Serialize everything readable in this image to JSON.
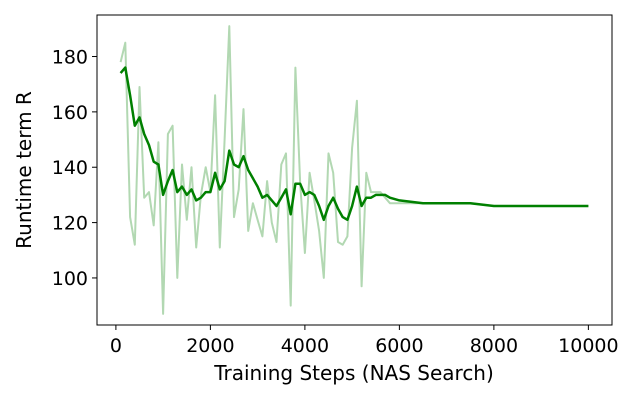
{
  "chart_data": {
    "type": "line",
    "xlabel": "Training Steps (NAS Search)",
    "ylabel": "Runtime term R",
    "xlim": [
      -400,
      10500
    ],
    "ylim": [
      83,
      195
    ],
    "xticks": [
      0,
      2000,
      4000,
      6000,
      8000,
      10000
    ],
    "yticks": [
      100,
      120,
      140,
      160,
      180
    ],
    "grid": false,
    "colors": {
      "raw": "#b2d8b2",
      "smoothed": "#008000"
    },
    "series": [
      {
        "x": [
          100,
          200,
          300,
          400,
          500,
          600,
          700,
          800,
          900,
          1000,
          1100,
          1200,
          1300,
          1400,
          1500,
          1600,
          1700,
          1800,
          1900,
          2000,
          2100,
          2200,
          2300,
          2400,
          2500,
          2600,
          2700,
          2800,
          2900,
          3000,
          3100,
          3200,
          3300,
          3400,
          3500,
          3600,
          3700,
          3800,
          3900,
          4000,
          4100,
          4200,
          4300,
          4400,
          4500,
          4600,
          4700,
          4800,
          4900,
          5000,
          5100,
          5200,
          5300,
          5400,
          5500,
          5600,
          5700,
          5800,
          6000,
          6500,
          7000,
          7500,
          8000,
          8500,
          9000,
          9500,
          10000
        ],
        "values": [
          178,
          185,
          122,
          112,
          169,
          129,
          131,
          119,
          149,
          87,
          152,
          155,
          100,
          141,
          121,
          140,
          111,
          130,
          140,
          131,
          166,
          111,
          150,
          191,
          122,
          132,
          161,
          117,
          127,
          121,
          115,
          135,
          120,
          113,
          141,
          145,
          90,
          176,
          134,
          109,
          138,
          128,
          117,
          100,
          145,
          138,
          113,
          112,
          115,
          147,
          164,
          97,
          138,
          131,
          131,
          131,
          129,
          127,
          127,
          127,
          127,
          127,
          126,
          126,
          126,
          126,
          126
        ]
      },
      {
        "x": [
          100,
          200,
          300,
          400,
          500,
          600,
          700,
          800,
          900,
          1000,
          1100,
          1200,
          1300,
          1400,
          1500,
          1600,
          1700,
          1800,
          1900,
          2000,
          2100,
          2200,
          2300,
          2400,
          2500,
          2600,
          2700,
          2800,
          2900,
          3000,
          3100,
          3200,
          3300,
          3400,
          3500,
          3600,
          3700,
          3800,
          3900,
          4000,
          4100,
          4200,
          4300,
          4400,
          4500,
          4600,
          4700,
          4800,
          4900,
          5000,
          5100,
          5200,
          5300,
          5400,
          5500,
          5600,
          5700,
          5800,
          6000,
          6500,
          7000,
          7500,
          8000,
          8500,
          9000,
          9500,
          10000
        ],
        "values": [
          174,
          176,
          166,
          155,
          158,
          152,
          148,
          142,
          141,
          130,
          135,
          139,
          131,
          133,
          130,
          132,
          128,
          129,
          131,
          131,
          138,
          132,
          135,
          146,
          141,
          140,
          144,
          139,
          136,
          133,
          129,
          130,
          128,
          126,
          129,
          132,
          123,
          134,
          134,
          130,
          131,
          130,
          126,
          121,
          126,
          129,
          125,
          122,
          121,
          126,
          133,
          126,
          129,
          129,
          130,
          130,
          130,
          129,
          128,
          127,
          127,
          127,
          126,
          126,
          126,
          126,
          126
        ]
      }
    ]
  }
}
